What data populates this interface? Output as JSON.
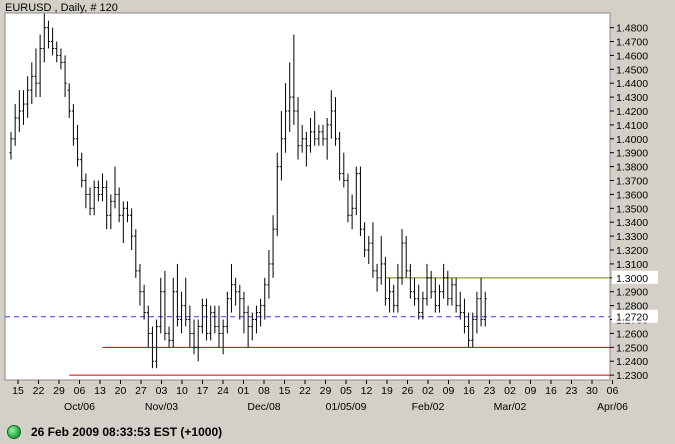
{
  "chart_data": {
    "type": "ohlc",
    "title": "EURUSD , Daily, # 120",
    "ylim": [
      1.2265,
      1.4905
    ],
    "yticks": [
      1.23,
      1.24,
      1.25,
      1.26,
      1.27,
      1.28,
      1.29,
      1.3,
      1.31,
      1.32,
      1.33,
      1.34,
      1.35,
      1.36,
      1.37,
      1.38,
      1.39,
      1.4,
      1.41,
      1.42,
      1.43,
      1.44,
      1.45,
      1.46,
      1.47,
      1.48
    ],
    "x_day_labels": [
      "15",
      "22",
      "29",
      "06",
      "13",
      "20",
      "27",
      "03",
      "10",
      "17",
      "24",
      "01",
      "08",
      "15",
      "22",
      "29",
      "05",
      "12",
      "19",
      "26",
      "02",
      "09",
      "16",
      "23",
      "02",
      "09",
      "16",
      "23",
      "30",
      "06"
    ],
    "x_month_labels": [
      {
        "label": "Oct/06",
        "index": 3
      },
      {
        "label": "Nov/03",
        "index": 7
      },
      {
        "label": "Dec/08",
        "index": 12
      },
      {
        "label": "01/05/09",
        "index": 16
      },
      {
        "label": "Feb/02",
        "index": 20
      },
      {
        "label": "Mar/02",
        "index": 24
      },
      {
        "label": "Apr/06",
        "index": 29
      }
    ],
    "grid": false,
    "bars": [
      [
        1.39,
        1.405,
        1.385,
        1.4
      ],
      [
        1.4,
        1.425,
        1.395,
        1.415
      ],
      [
        1.415,
        1.435,
        1.405,
        1.42
      ],
      [
        1.42,
        1.435,
        1.41,
        1.425
      ],
      [
        1.425,
        1.445,
        1.415,
        1.435
      ],
      [
        1.435,
        1.455,
        1.425,
        1.445
      ],
      [
        1.445,
        1.465,
        1.43,
        1.44
      ],
      [
        1.44,
        1.475,
        1.43,
        1.465
      ],
      [
        1.465,
        1.49,
        1.455,
        1.48
      ],
      [
        1.48,
        1.485,
        1.465,
        1.47
      ],
      [
        1.47,
        1.48,
        1.46,
        1.465
      ],
      [
        1.465,
        1.47,
        1.455,
        1.46
      ],
      [
        1.46,
        1.465,
        1.45,
        1.455
      ],
      [
        1.455,
        1.46,
        1.43,
        1.44
      ],
      [
        1.435,
        1.44,
        1.415,
        1.42
      ],
      [
        1.42,
        1.425,
        1.395,
        1.4
      ],
      [
        1.4,
        1.41,
        1.38,
        1.385
      ],
      [
        1.385,
        1.39,
        1.365,
        1.37
      ],
      [
        1.37,
        1.375,
        1.35,
        1.36
      ],
      [
        1.36,
        1.365,
        1.345,
        1.35
      ],
      [
        1.35,
        1.37,
        1.345,
        1.365
      ],
      [
        1.365,
        1.37,
        1.355,
        1.36
      ],
      [
        1.36,
        1.375,
        1.355,
        1.365
      ],
      [
        1.365,
        1.37,
        1.335,
        1.345
      ],
      [
        1.345,
        1.36,
        1.335,
        1.355
      ],
      [
        1.355,
        1.38,
        1.35,
        1.36
      ],
      [
        1.36,
        1.365,
        1.34,
        1.345
      ],
      [
        1.345,
        1.355,
        1.325,
        1.35
      ],
      [
        1.35,
        1.355,
        1.34,
        1.345
      ],
      [
        1.345,
        1.35,
        1.32,
        1.33
      ],
      [
        1.33,
        1.335,
        1.3,
        1.305
      ],
      [
        1.305,
        1.31,
        1.28,
        1.29
      ],
      [
        1.29,
        1.295,
        1.27,
        1.275
      ],
      [
        1.275,
        1.28,
        1.25,
        1.26
      ],
      [
        1.26,
        1.265,
        1.235,
        1.24
      ],
      [
        1.24,
        1.27,
        1.235,
        1.265
      ],
      [
        1.265,
        1.3,
        1.26,
        1.29
      ],
      [
        1.29,
        1.305,
        1.255,
        1.26
      ],
      [
        1.26,
        1.265,
        1.25,
        1.255
      ],
      [
        1.255,
        1.3,
        1.25,
        1.29
      ],
      [
        1.29,
        1.31,
        1.265,
        1.27
      ],
      [
        1.27,
        1.29,
        1.26,
        1.28
      ],
      [
        1.28,
        1.3,
        1.265,
        1.27
      ],
      [
        1.27,
        1.28,
        1.25,
        1.26
      ],
      [
        1.26,
        1.27,
        1.245,
        1.25
      ],
      [
        1.25,
        1.27,
        1.24,
        1.265
      ],
      [
        1.265,
        1.285,
        1.26,
        1.28
      ],
      [
        1.28,
        1.285,
        1.255,
        1.26
      ],
      [
        1.26,
        1.28,
        1.255,
        1.275
      ],
      [
        1.275,
        1.28,
        1.26,
        1.265
      ],
      [
        1.265,
        1.28,
        1.25,
        1.26
      ],
      [
        1.26,
        1.27,
        1.245,
        1.265
      ],
      [
        1.265,
        1.29,
        1.26,
        1.285
      ],
      [
        1.285,
        1.31,
        1.275,
        1.295
      ],
      [
        1.295,
        1.3,
        1.28,
        1.29
      ],
      [
        1.29,
        1.295,
        1.27,
        1.285
      ],
      [
        1.285,
        1.29,
        1.26,
        1.275
      ],
      [
        1.275,
        1.28,
        1.25,
        1.265
      ],
      [
        1.265,
        1.275,
        1.255,
        1.27
      ],
      [
        1.27,
        1.28,
        1.26,
        1.275
      ],
      [
        1.275,
        1.285,
        1.265,
        1.28
      ],
      [
        1.28,
        1.3,
        1.27,
        1.295
      ],
      [
        1.295,
        1.32,
        1.285,
        1.31
      ],
      [
        1.31,
        1.345,
        1.3,
        1.335
      ],
      [
        1.335,
        1.39,
        1.33,
        1.38
      ],
      [
        1.38,
        1.42,
        1.37,
        1.4
      ],
      [
        1.4,
        1.44,
        1.39,
        1.42
      ],
      [
        1.42,
        1.455,
        1.405,
        1.43
      ],
      [
        1.43,
        1.475,
        1.41,
        1.42
      ],
      [
        1.42,
        1.43,
        1.385,
        1.395
      ],
      [
        1.395,
        1.41,
        1.39,
        1.4
      ],
      [
        1.4,
        1.405,
        1.38,
        1.395
      ],
      [
        1.395,
        1.415,
        1.39,
        1.405
      ],
      [
        1.405,
        1.42,
        1.395,
        1.4
      ],
      [
        1.4,
        1.41,
        1.395,
        1.405
      ],
      [
        1.405,
        1.41,
        1.395,
        1.4
      ],
      [
        1.4,
        1.415,
        1.385,
        1.41
      ],
      [
        1.41,
        1.435,
        1.4,
        1.42
      ],
      [
        1.42,
        1.43,
        1.395,
        1.4
      ],
      [
        1.4,
        1.405,
        1.37,
        1.375
      ],
      [
        1.375,
        1.39,
        1.365,
        1.37
      ],
      [
        1.37,
        1.375,
        1.34,
        1.345
      ],
      [
        1.345,
        1.36,
        1.335,
        1.35
      ],
      [
        1.35,
        1.38,
        1.345,
        1.375
      ],
      [
        1.375,
        1.38,
        1.33,
        1.335
      ],
      [
        1.335,
        1.34,
        1.315,
        1.32
      ],
      [
        1.32,
        1.33,
        1.31,
        1.325
      ],
      [
        1.325,
        1.34,
        1.3,
        1.305
      ],
      [
        1.305,
        1.31,
        1.29,
        1.3
      ],
      [
        1.3,
        1.33,
        1.295,
        1.31
      ],
      [
        1.31,
        1.315,
        1.28,
        1.285
      ],
      [
        1.285,
        1.3,
        1.275,
        1.29
      ],
      [
        1.29,
        1.295,
        1.275,
        1.28
      ],
      [
        1.28,
        1.31,
        1.275,
        1.3
      ],
      [
        1.3,
        1.335,
        1.295,
        1.325
      ],
      [
        1.325,
        1.33,
        1.3,
        1.305
      ],
      [
        1.305,
        1.31,
        1.285,
        1.29
      ],
      [
        1.29,
        1.3,
        1.28,
        1.285
      ],
      [
        1.285,
        1.295,
        1.27,
        1.275
      ],
      [
        1.275,
        1.29,
        1.27,
        1.285
      ],
      [
        1.285,
        1.31,
        1.28,
        1.3
      ],
      [
        1.3,
        1.305,
        1.285,
        1.29
      ],
      [
        1.29,
        1.3,
        1.275,
        1.28
      ],
      [
        1.28,
        1.295,
        1.275,
        1.29
      ],
      [
        1.29,
        1.31,
        1.285,
        1.3
      ],
      [
        1.3,
        1.305,
        1.28,
        1.285
      ],
      [
        1.285,
        1.3,
        1.28,
        1.295
      ],
      [
        1.295,
        1.3,
        1.275,
        1.28
      ],
      [
        1.28,
        1.29,
        1.27,
        1.275
      ],
      [
        1.275,
        1.285,
        1.26,
        1.265
      ],
      [
        1.265,
        1.275,
        1.25,
        1.255
      ],
      [
        1.255,
        1.275,
        1.25,
        1.27
      ],
      [
        1.27,
        1.29,
        1.26,
        1.285
      ],
      [
        1.285,
        1.3,
        1.265,
        1.27
      ],
      [
        1.27,
        1.29,
        1.265,
        1.285
      ]
    ],
    "annotations": [
      {
        "type": "horizontal_line",
        "price": 1.272,
        "style": "dashed",
        "color": "#3b3bf0",
        "label": "1.2720",
        "full_width": true
      },
      {
        "type": "horizontal_line",
        "price": 1.3,
        "color": "#808000",
        "label": "1.3000",
        "start_bar": 90
      },
      {
        "type": "horizontal_line",
        "price": 1.25,
        "color": "#c00000",
        "start_bar": 22
      },
      {
        "type": "horizontal_line",
        "price": 1.23,
        "color": "#c00000",
        "start_bar": 14
      }
    ]
  },
  "status": {
    "text": "26 Feb 2009 08:33:53  EST (+1000)",
    "indicator_color": "#2db64a"
  }
}
